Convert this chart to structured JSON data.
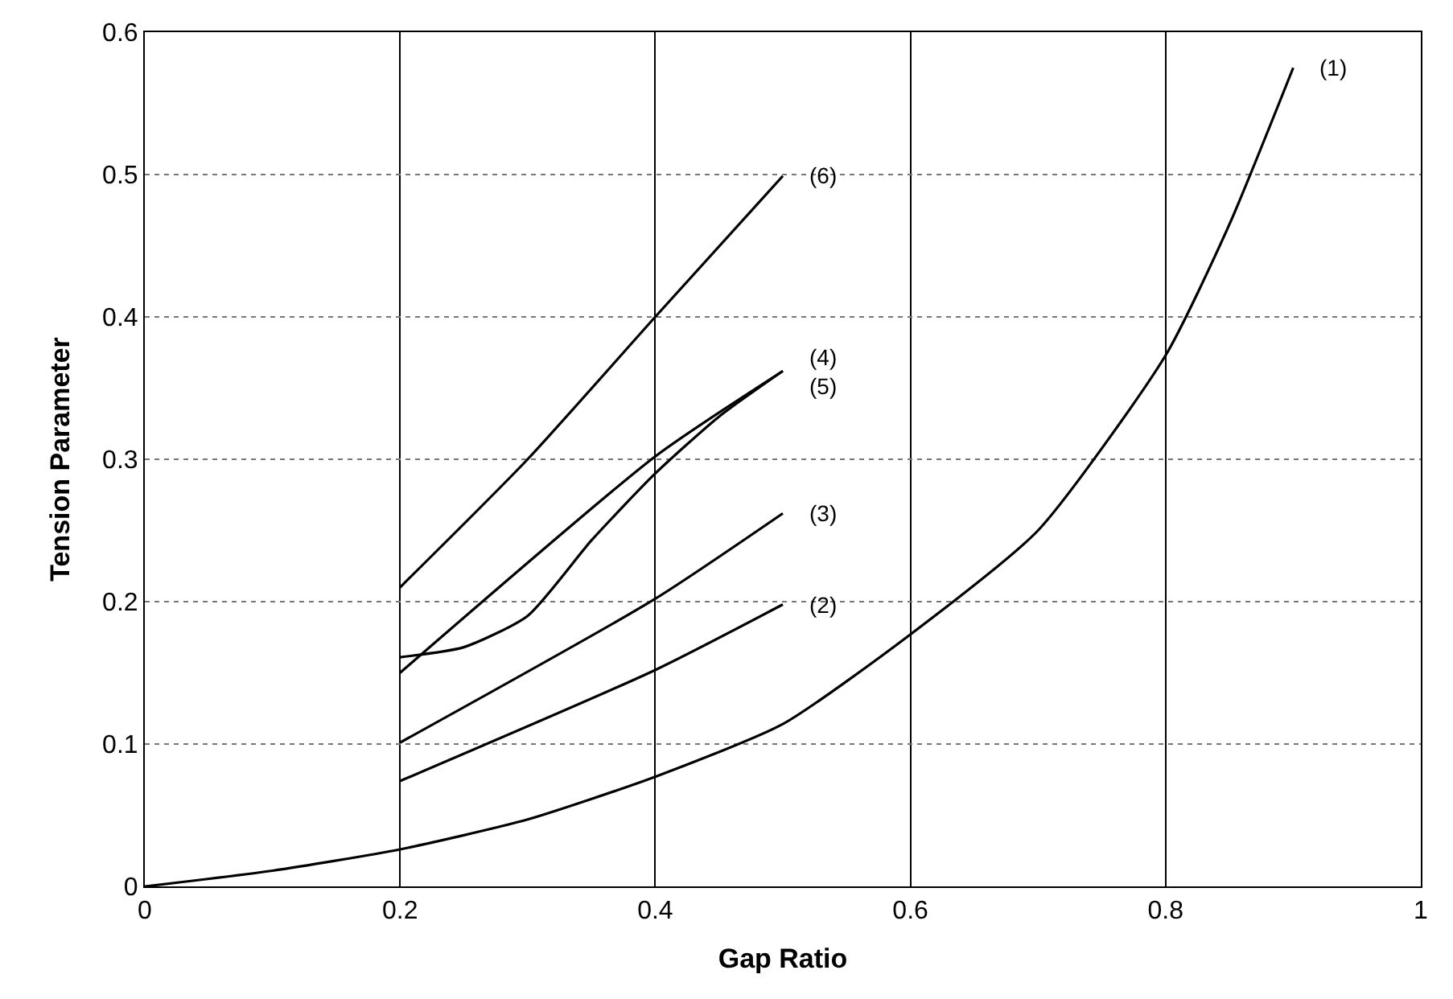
{
  "chart_data": {
    "type": "line",
    "xlabel": "Gap Ratio",
    "ylabel": "Tension Parameter",
    "xlim": [
      0,
      1
    ],
    "xticks": [
      0,
      0.2,
      0.4,
      0.6,
      0.8,
      1
    ],
    "ylim": [
      0,
      0.6
    ],
    "yticks": [
      0,
      0.1,
      0.2,
      0.3,
      0.4,
      0.5,
      0.6
    ],
    "grid": true,
    "legend": false,
    "marker": "none",
    "line_style": "solid",
    "series": [
      {
        "name": "(1)",
        "color": "#000000",
        "x": [
          0,
          0.1,
          0.2,
          0.3,
          0.4,
          0.5,
          0.6,
          0.7,
          0.8,
          0.85,
          0.9
        ],
        "values": [
          0,
          0.011,
          0.026,
          0.047,
          0.077,
          0.114,
          0.177,
          0.25,
          0.373,
          0.465,
          0.575
        ]
      },
      {
        "name": "(2)",
        "color": "#000000",
        "x": [
          0.2,
          0.4,
          0.5
        ],
        "values": [
          0.074,
          0.152,
          0.198
        ]
      },
      {
        "name": "(3)",
        "color": "#000000",
        "x": [
          0.2,
          0.4,
          0.5
        ],
        "values": [
          0.101,
          0.202,
          0.262
        ]
      },
      {
        "name": "(4)",
        "color": "#000000",
        "x": [
          0.2,
          0.25,
          0.3,
          0.35,
          0.4,
          0.45,
          0.5
        ],
        "values": [
          0.161,
          0.168,
          0.19,
          0.243,
          0.29,
          0.33,
          0.362
        ]
      },
      {
        "name": "(5)",
        "color": "#000000",
        "x": [
          0.2,
          0.4,
          0.5
        ],
        "values": [
          0.15,
          0.302,
          0.362
        ]
      },
      {
        "name": "(6)",
        "color": "#000000",
        "x": [
          0.2,
          0.3,
          0.4,
          0.5
        ],
        "values": [
          0.21,
          0.3,
          0.4,
          0.499
        ]
      }
    ]
  }
}
